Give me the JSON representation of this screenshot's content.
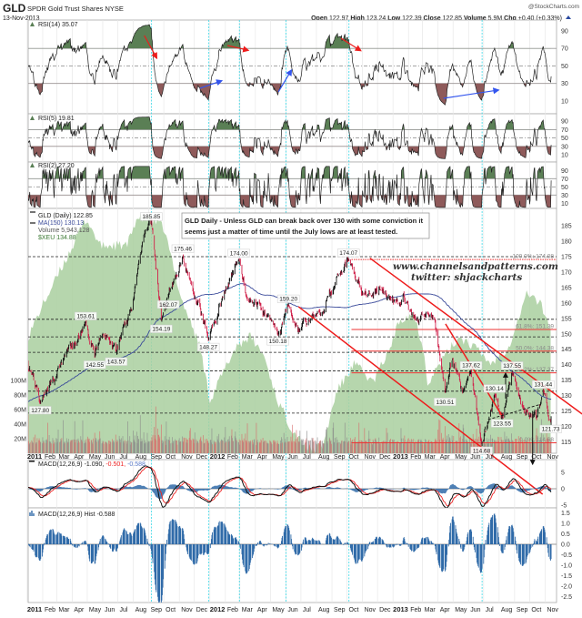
{
  "header": {
    "symbol": "GLD",
    "name": "SPDR Gold Trust Shares NYSE",
    "date": "13-Nov-2013",
    "brand": "@StockCharts.com",
    "open_label": "Open",
    "open": "122.97",
    "high_label": "High",
    "high": "123.24",
    "low_label": "Low",
    "low": "122.39",
    "close_label": "Close",
    "close": "122.85",
    "volume_label": "Volume",
    "volume": "5.9M",
    "chg_label": "Chg",
    "chg": "+0.40 (+0.33%)"
  },
  "annotation": {
    "line1": "GLD Daily - Unless GLD can break back over 130 with some conviction it",
    "line2": "seems just a matter of time until the July lows are at least tested."
  },
  "watermark": {
    "site": "www.channelsandpatterns.com",
    "twitter": "twitter: shjackcharts"
  },
  "colors": {
    "up": "#111111",
    "down": "#d0204a",
    "ma": "#3a4a9a",
    "xeu": "#a9cf9f",
    "rsi_overbought": "#5a7f55",
    "rsi_oversold": "#8e5a5a",
    "cyan": "#33d6e6",
    "trend": "#ee1c1c",
    "macd": "#111111",
    "signal": "#ee2222",
    "hist": "#2f6aa8"
  },
  "chart_data": {
    "type": "candlestick",
    "x_range": [
      "2011-01-03",
      "2013-11-13"
    ],
    "x_ticks": [
      {
        "label": "2011",
        "date": "2011-01-01",
        "year": true
      },
      {
        "label": "Feb",
        "date": "2011-02-01"
      },
      {
        "label": "Mar",
        "date": "2011-03-01"
      },
      {
        "label": "Apr",
        "date": "2011-04-01"
      },
      {
        "label": "May",
        "date": "2011-05-01"
      },
      {
        "label": "Jun",
        "date": "2011-06-01"
      },
      {
        "label": "Jul",
        "date": "2011-07-01"
      },
      {
        "label": "Aug",
        "date": "2011-08-01"
      },
      {
        "label": "Sep",
        "date": "2011-09-01"
      },
      {
        "label": "Oct",
        "date": "2011-10-01"
      },
      {
        "label": "Nov",
        "date": "2011-11-01"
      },
      {
        "label": "Dec",
        "date": "2011-12-01"
      },
      {
        "label": "2012",
        "date": "2012-01-01",
        "year": true
      },
      {
        "label": "Feb",
        "date": "2012-02-01"
      },
      {
        "label": "Mar",
        "date": "2012-03-01"
      },
      {
        "label": "Apr",
        "date": "2012-04-01"
      },
      {
        "label": "May",
        "date": "2012-05-01"
      },
      {
        "label": "Jun",
        "date": "2012-06-01"
      },
      {
        "label": "Jul",
        "date": "2012-07-01"
      },
      {
        "label": "Aug",
        "date": "2012-08-01"
      },
      {
        "label": "Sep",
        "date": "2012-09-01"
      },
      {
        "label": "Oct",
        "date": "2012-10-01"
      },
      {
        "label": "Nov",
        "date": "2012-11-01"
      },
      {
        "label": "Dec",
        "date": "2012-12-01"
      },
      {
        "label": "2013",
        "date": "2013-01-01",
        "year": true
      },
      {
        "label": "Feb",
        "date": "2013-02-01"
      },
      {
        "label": "Mar",
        "date": "2013-03-01"
      },
      {
        "label": "Apr",
        "date": "2013-04-01"
      },
      {
        "label": "May",
        "date": "2013-05-01"
      },
      {
        "label": "Jun",
        "date": "2013-06-01"
      },
      {
        "label": "Jul",
        "date": "2013-07-01"
      },
      {
        "label": "Aug",
        "date": "2013-08-01"
      },
      {
        "label": "Sep",
        "date": "2013-09-01"
      },
      {
        "label": "Oct",
        "date": "2013-10-01"
      },
      {
        "label": "Nov",
        "date": "2013-11-01"
      }
    ],
    "cyan_markers": [
      "2011-09-06",
      "2011-12-30",
      "2012-02-29",
      "2012-06-01",
      "2012-10-05",
      "2013-06-28"
    ],
    "panels": {
      "rsi14": {
        "label": "RSI(14) 35.07",
        "ticks": [
          90,
          70,
          50,
          30,
          10
        ],
        "levels": [
          70,
          50,
          30
        ]
      },
      "rsi5": {
        "label": "RSI(5) 19.81",
        "ticks": [
          90,
          70,
          50,
          30,
          10
        ],
        "levels": [
          70,
          50,
          30
        ]
      },
      "rsi2": {
        "label": "RSI(2) 27.20",
        "ticks": [
          90,
          70,
          50,
          30,
          10
        ],
        "levels": [
          70,
          50,
          30
        ]
      },
      "price": {
        "legend": {
          "gld": "GLD (Daily) 122.85",
          "ma": "MA(150) 130.13",
          "volume": "Volume 5,943,128",
          "xeu": "$XEU 134.88"
        },
        "ticks": [
          185,
          180,
          175,
          170,
          165,
          160,
          155,
          150,
          145,
          140,
          135,
          130,
          125,
          120,
          115
        ],
        "ylim": [
          112,
          190
        ],
        "volume_ticks": [
          {
            "label": "100M",
            "v": 100
          },
          {
            "label": "80M",
            "v": 80
          },
          {
            "label": "60M",
            "v": 60
          },
          {
            "label": "40M",
            "v": 40
          },
          {
            "label": "20M",
            "v": 20
          }
        ]
      },
      "macd": {
        "label_main": "MACD(12,26,9) -1.090,",
        "label_signal": " -0.501,",
        "label_hist": " -0.588",
        "ticks": [
          5,
          0,
          -5
        ]
      },
      "hist": {
        "label": "MACD(12,26,9) Hist -0.588",
        "ticks": [
          1.5,
          1.0,
          0.5,
          0.0,
          -0.5,
          -1.0,
          -1.5,
          -2.0,
          -2.5
        ]
      }
    },
    "price_keypoints": [
      [
        "2011-01-03",
        138.5
      ],
      [
        "2011-01-27",
        127.8
      ],
      [
        "2011-03-07",
        139
      ],
      [
        "2011-04-28",
        153.61
      ],
      [
        "2011-05-16",
        142.55
      ],
      [
        "2011-06-01",
        150
      ],
      [
        "2011-06-28",
        143.57
      ],
      [
        "2011-07-29",
        158
      ],
      [
        "2011-08-22",
        182
      ],
      [
        "2011-09-06",
        185.85
      ],
      [
        "2011-09-26",
        154.19
      ],
      [
        "2011-10-10",
        162.07
      ],
      [
        "2011-11-08",
        175.46
      ],
      [
        "2011-11-25",
        166
      ],
      [
        "2011-12-29",
        148.27
      ],
      [
        "2012-01-20",
        160
      ],
      [
        "2012-02-28",
        174.0
      ],
      [
        "2012-03-14",
        162
      ],
      [
        "2012-04-10",
        160
      ],
      [
        "2012-05-16",
        150.18
      ],
      [
        "2012-06-06",
        159.2
      ],
      [
        "2012-06-28",
        151
      ],
      [
        "2012-08-01",
        156
      ],
      [
        "2012-08-17",
        157
      ],
      [
        "2012-09-05",
        165
      ],
      [
        "2012-10-04",
        174.07
      ],
      [
        "2012-11-02",
        163
      ],
      [
        "2012-12-05",
        165
      ],
      [
        "2012-12-28",
        161
      ],
      [
        "2013-01-22",
        163
      ],
      [
        "2013-02-15",
        155
      ],
      [
        "2013-03-25",
        155
      ],
      [
        "2013-04-15",
        130.51
      ],
      [
        "2013-04-30",
        142
      ],
      [
        "2013-05-20",
        131
      ],
      [
        "2013-06-06",
        137.62
      ],
      [
        "2013-06-27",
        114.68
      ],
      [
        "2013-07-23",
        130.14
      ],
      [
        "2013-08-07",
        123.55
      ],
      [
        "2013-08-27",
        137.55
      ],
      [
        "2013-09-17",
        126.5
      ],
      [
        "2013-10-15",
        122.5
      ],
      [
        "2013-10-28",
        131.44
      ],
      [
        "2013-11-12",
        121.73
      ],
      [
        "2013-11-13",
        122.85
      ]
    ],
    "xeu_keypoints": [
      [
        "2011-01-03",
        134.1
      ],
      [
        "2011-01-28",
        137.3
      ],
      [
        "2011-04-02",
        144.8
      ],
      [
        "2011-04-29",
        148
      ],
      [
        "2011-05-27",
        144.8
      ],
      [
        "2011-07-20",
        144.8
      ],
      [
        "2011-08-07",
        148
      ],
      [
        "2011-09-03",
        148
      ],
      [
        "2011-10-01",
        146.9
      ],
      [
        "2011-11-06",
        138.4
      ],
      [
        "2011-12-12",
        133
      ],
      [
        "2012-01-01",
        126.6
      ],
      [
        "2012-01-18",
        128.7
      ],
      [
        "2012-02-23",
        133
      ],
      [
        "2012-03-21",
        134.1
      ],
      [
        "2012-04-18",
        131.9
      ],
      [
        "2012-05-15",
        126.6
      ],
      [
        "2012-06-11",
        123.4
      ],
      [
        "2012-07-17",
        120.7
      ],
      [
        "2012-08-14",
        121.2
      ],
      [
        "2012-09-10",
        127.6
      ],
      [
        "2012-10-16",
        130.9
      ],
      [
        "2012-11-22",
        128.7
      ],
      [
        "2012-12-28",
        133
      ],
      [
        "2013-01-15",
        136.2
      ],
      [
        "2013-02-11",
        136.8
      ],
      [
        "2013-03-02",
        133
      ],
      [
        "2013-03-11",
        128.7
      ],
      [
        "2013-04-16",
        131.9
      ],
      [
        "2013-05-13",
        134.1
      ],
      [
        "2013-06-10",
        133
      ],
      [
        "2013-07-16",
        130.9
      ],
      [
        "2013-08-21",
        133
      ],
      [
        "2013-09-27",
        139.4
      ],
      [
        "2013-10-24",
        137.8
      ],
      [
        "2013-11-13",
        134.88
      ]
    ],
    "price_labels": [
      {
        "text": "127.80",
        "date": "2011-01-27",
        "price": 127.8,
        "pos": "below"
      },
      {
        "text": "153.61",
        "date": "2011-04-28",
        "price": 153.61,
        "pos": "above"
      },
      {
        "text": "142.55",
        "date": "2011-05-16",
        "price": 142.55,
        "pos": "below"
      },
      {
        "text": "143.57",
        "date": "2011-06-28",
        "price": 143.57,
        "pos": "below"
      },
      {
        "text": "185.85",
        "date": "2011-09-06",
        "price": 185.85,
        "pos": "above"
      },
      {
        "text": "154.19",
        "date": "2011-09-26",
        "price": 154.19,
        "pos": "below"
      },
      {
        "text": "162.07",
        "date": "2011-10-10",
        "price": 162.07,
        "pos": "below"
      },
      {
        "text": "175.46",
        "date": "2011-11-08",
        "price": 175.46,
        "pos": "above"
      },
      {
        "text": "148.27",
        "date": "2011-12-29",
        "price": 148.27,
        "pos": "below"
      },
      {
        "text": "174.00",
        "date": "2012-02-28",
        "price": 174.0,
        "pos": "above"
      },
      {
        "text": "150.18",
        "date": "2012-05-16",
        "price": 150.18,
        "pos": "below"
      },
      {
        "text": "159.20",
        "date": "2012-06-06",
        "price": 159.2,
        "pos": "above"
      },
      {
        "text": "174.07",
        "date": "2012-10-04",
        "price": 174.07,
        "pos": "above"
      },
      {
        "text": "130.51",
        "date": "2013-04-15",
        "price": 130.51,
        "pos": "below"
      },
      {
        "text": "137.62",
        "date": "2013-06-06",
        "price": 137.62,
        "pos": "above"
      },
      {
        "text": "114.68",
        "date": "2013-06-27",
        "price": 114.68,
        "pos": "below"
      },
      {
        "text": "130.14",
        "date": "2013-07-23",
        "price": 130.14,
        "pos": "above"
      },
      {
        "text": "123.55",
        "date": "2013-08-07",
        "price": 123.55,
        "pos": "below"
      },
      {
        "text": "137.55",
        "date": "2013-08-27",
        "price": 137.55,
        "pos": "above"
      },
      {
        "text": "131.44",
        "date": "2013-10-28",
        "price": 131.44,
        "pos": "above"
      },
      {
        "text": "121.73",
        "date": "2013-11-12",
        "price": 121.73,
        "pos": "below"
      }
    ],
    "horizontal_levels": [
      {
        "price": 175,
        "color": "black",
        "style": "dashed",
        "from": "2011-01-03"
      },
      {
        "price": 154.7,
        "color": "black",
        "style": "dashed",
        "from": "2011-01-03"
      },
      {
        "price": 149,
        "color": "black",
        "style": "dashed",
        "from": "2011-01-03"
      },
      {
        "price": 144,
        "color": "black",
        "style": "dashed",
        "from": "2011-01-03"
      },
      {
        "price": 138,
        "color": "black",
        "style": "dashed",
        "from": "2011-01-03"
      },
      {
        "price": 131.4,
        "color": "black",
        "style": "dashed",
        "from": "2011-01-03"
      },
      {
        "price": 124.3,
        "color": "black",
        "style": "dashed",
        "from": "2011-01-03"
      },
      {
        "price": 174.08,
        "color": "red",
        "style": "dotted",
        "from": "2012-10-10"
      },
      {
        "price": 151.39,
        "color": "red",
        "style": "solid",
        "from": "2012-10-10"
      },
      {
        "price": 144.38,
        "color": "red",
        "style": "solid",
        "from": "2012-10-10"
      },
      {
        "price": 137.37,
        "color": "red",
        "style": "solid",
        "from": "2012-10-10"
      },
      {
        "price": 114.68,
        "color": "red",
        "style": "solid",
        "from": "2012-10-10"
      }
    ],
    "fib_labels": [
      {
        "text": "100.0%: 174.08",
        "price": 174.08
      },
      {
        "text": "61.8%: 151.39",
        "price": 151.39
      },
      {
        "text": "50.0%: 144.38",
        "price": 144.38
      },
      {
        "text": "38.2%: 137.37",
        "price": 137.37
      },
      {
        "text": "0.0%: 114.68",
        "price": 114.68
      }
    ],
    "trendlines": [
      {
        "from": [
          "2012-11-16",
          174.5
        ],
        "to": [
          "2014-01-14",
          124.0
        ],
        "color": "red"
      },
      {
        "from": [
          "2012-06-26",
          158.8
        ],
        "to": [
          "2013-10-27",
          98.0
        ],
        "color": "red"
      },
      {
        "from": [
          "2013-04-16",
          153.2
        ],
        "to": [
          "2013-08-07",
          123.4
        ],
        "color": "red"
      },
      {
        "from": [
          "2013-07-10",
          122.2
        ],
        "to": [
          "2013-10-24",
          127.2
        ],
        "color": "black",
        "style": "dashed"
      }
    ],
    "arrows_price": [
      {
        "date": "2013-08-14",
        "from": 129,
        "to": 137,
        "direction": "up"
      },
      {
        "date": "2013-10-07",
        "from": 125,
        "to": 108,
        "direction": "down"
      }
    ],
    "rsi14_divergence_arrows": [
      {
        "from": [
          "2011-08-23",
          84.7
        ],
        "to": [
          "2011-09-16",
          59.8
        ],
        "color": "red"
      },
      {
        "from": [
          "2012-02-05",
          73.3
        ],
        "to": [
          "2012-03-16",
          68
        ],
        "color": "red"
      },
      {
        "from": [
          "2012-09-19",
          81.6
        ],
        "to": [
          "2012-10-27",
          68
        ],
        "color": "red"
      },
      {
        "from": [
          "2011-12-12",
          24.4
        ],
        "to": [
          "2012-01-23",
          32.7
        ],
        "color": "blue"
      },
      {
        "from": [
          "2012-05-17",
          20.3
        ],
        "to": [
          "2012-06-11",
          44.2
        ],
        "color": "blue"
      },
      {
        "from": [
          "2013-04-12",
          13
        ],
        "to": [
          "2013-07-29",
          22.3
        ],
        "color": "blue"
      }
    ]
  }
}
